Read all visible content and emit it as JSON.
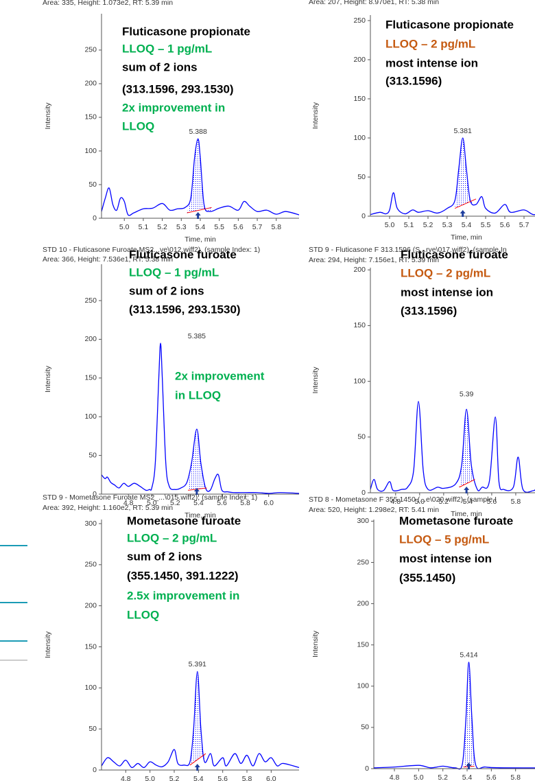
{
  "chart_data": [
    {
      "type": "line",
      "header": [
        "Area: 335, Height: 1.073e2, RT: 5.39 min"
      ],
      "annotations": [
        {
          "text": "Fluticasone propionate",
          "color": "#000000"
        },
        {
          "text": "LLOQ – 1 pg/mL",
          "color": "#00b050"
        },
        {
          "text": "sum of 2 ions",
          "color": "#000000"
        },
        {
          "text": "(313.1596, 293.1530)",
          "color": "#000000"
        },
        {
          "text": "2x improvement in",
          "color": "#00b050"
        },
        {
          "text": "LLOQ",
          "color": "#00b050"
        }
      ],
      "ylabel": "Intensity",
      "xlabel": "Time, min",
      "xlim": [
        4.88,
        5.92
      ],
      "ylim": [
        0,
        304
      ],
      "xticks": [
        {
          "value": 5,
          "label": "5.0"
        },
        5.1,
        5.2,
        5.3,
        5.4,
        5.5,
        5.6,
        5.7,
        5.8
      ],
      "yticks": [
        0,
        50,
        100,
        150,
        200,
        250
      ],
      "x": [
        4.88,
        4.9,
        4.92,
        4.94,
        4.96,
        4.98,
        5.0,
        5.02,
        5.05,
        5.1,
        5.15,
        5.2,
        5.24,
        5.28,
        5.32,
        5.35,
        5.37,
        5.388,
        5.4,
        5.42,
        5.45,
        5.5,
        5.55,
        5.6,
        5.63,
        5.66,
        5.7,
        5.75,
        5.8,
        5.85,
        5.92
      ],
      "values": [
        10,
        30,
        45,
        20,
        12,
        30,
        25,
        5,
        8,
        14,
        15,
        22,
        12,
        14,
        16,
        30,
        90,
        118,
        90,
        20,
        10,
        15,
        18,
        12,
        25,
        18,
        10,
        12,
        6,
        10,
        5
      ],
      "color": "#0000ff",
      "baseline": {
        "x": [
          5.33,
          5.46
        ],
        "y": [
          8,
          16
        ],
        "color": "#ff0000"
      },
      "peak_rt": 5.388
    },
    {
      "type": "line",
      "header": [
        "Area: 207, Height: 8.970e1, RT: 5.38 min"
      ],
      "annotations": [
        {
          "text": "Fluticasone propionate",
          "color": "#000000"
        },
        {
          "text": "LLOQ – 2 pg/mL",
          "color": "#c55a11"
        },
        {
          "text": "most intense ion",
          "color": "#000000"
        },
        {
          "text": "(313.1596)",
          "color": "#000000"
        }
      ],
      "ylabel": "Intensity",
      "xlabel": "Time, min",
      "xlim": [
        4.9,
        5.9
      ],
      "ylim": [
        0,
        257
      ],
      "xticks": [
        {
          "value": 5,
          "label": "5.0"
        },
        5.1,
        5.2,
        5.3,
        5.4,
        5.5,
        5.6,
        5.7
      ],
      "yticks": [
        0,
        50,
        100,
        150,
        200,
        250
      ],
      "x": [
        4.9,
        4.95,
        4.98,
        5.0,
        5.02,
        5.04,
        5.08,
        5.12,
        5.15,
        5.2,
        5.25,
        5.3,
        5.34,
        5.36,
        5.381,
        5.4,
        5.42,
        5.45,
        5.48,
        5.5,
        5.55,
        5.6,
        5.63,
        5.7,
        5.75,
        5.8,
        5.85,
        5.9
      ],
      "values": [
        2,
        5,
        3,
        8,
        30,
        10,
        3,
        8,
        5,
        7,
        4,
        10,
        20,
        60,
        100,
        60,
        20,
        15,
        25,
        10,
        4,
        15,
        5,
        8,
        2,
        6,
        2,
        3
      ],
      "color": "#0000ff",
      "baseline": {
        "x": [
          5.34,
          5.45
        ],
        "y": [
          10,
          22
        ],
        "color": "#ff0000"
      },
      "peak_rt": 5.381
    },
    {
      "type": "line",
      "header": [
        "STD 10 - Fluticasone Furoate MS2...ve\\012.wiff2), (sample Index: 1)",
        "Area: 366, Height: 7.536e1, RT: 5.38 min"
      ],
      "annotations": [
        {
          "text": "Fluticasone furoate",
          "color": "#000000"
        },
        {
          "text": "LLOQ – 1 pg/mL",
          "color": "#00b050"
        },
        {
          "text": "sum of 2 ions",
          "color": "#000000"
        },
        {
          "text": "(313.1596, 293.1530)",
          "color": "#000000"
        },
        {
          "text": "2x improvement",
          "color": "#00b050"
        },
        {
          "text": "in LLOQ",
          "color": "#00b050"
        }
      ],
      "ylabel": "Intensity",
      "xlabel": "Time, min",
      "xlim": [
        4.57,
        6.26
      ],
      "ylim": [
        0,
        297
      ],
      "xticks": [
        4.8,
        {
          "value": 5,
          "label": "5.0"
        },
        5.2,
        5.4,
        5.6,
        5.8,
        {
          "value": 6,
          "label": "6.0"
        }
      ],
      "yticks": [
        0,
        50,
        100,
        150,
        200,
        250
      ],
      "x": [
        4.57,
        4.6,
        4.62,
        4.65,
        4.68,
        4.72,
        4.76,
        4.8,
        4.85,
        4.9,
        4.95,
        4.98,
        5.0,
        5.03,
        5.06,
        5.075,
        5.09,
        5.12,
        5.15,
        5.2,
        5.25,
        5.3,
        5.34,
        5.385,
        5.42,
        5.46,
        5.5,
        5.54,
        5.57,
        5.6,
        5.65,
        5.7,
        5.8,
        5.9,
        6.0,
        6.1,
        6.26
      ],
      "values": [
        25,
        20,
        22,
        15,
        12,
        8,
        14,
        10,
        14,
        10,
        5,
        6,
        8,
        40,
        150,
        195,
        150,
        40,
        10,
        6,
        8,
        15,
        40,
        84,
        40,
        8,
        5,
        20,
        25,
        5,
        3,
        2,
        2,
        2,
        1,
        2,
        1
      ],
      "color": "#0000ff",
      "baseline": {
        "x": [
          5.31,
          5.47
        ],
        "y": [
          5,
          8
        ],
        "color": "#ff0000"
      },
      "peak_rt": 5.385
    },
    {
      "type": "line",
      "header": [
        "STD 9 - Fluticasone F 313.1596 (S...rve\\017.wiff2), (sample In",
        "Area: 294, Height: 7.156e1, RT: 5.39 min"
      ],
      "annotations": [
        {
          "text": "Fluticasone furoate",
          "color": "#000000"
        },
        {
          "text": "LLOQ – 2 pg/mL",
          "color": "#c55a11"
        },
        {
          "text": "most intense ion",
          "color": "#000000"
        },
        {
          "text": "(313.1596)",
          "color": "#000000"
        }
      ],
      "ylabel": "Intensity",
      "xlabel": "Time, min",
      "xlim": [
        4.59,
        6.28
      ],
      "ylim": [
        0,
        202
      ],
      "xticks": [
        4.8,
        {
          "value": 5,
          "label": "5.0"
        },
        5.2,
        5.4,
        5.6,
        5.8
      ],
      "yticks": [
        0,
        50,
        100,
        150,
        200
      ],
      "x": [
        4.59,
        4.62,
        4.65,
        4.7,
        4.75,
        4.78,
        4.85,
        4.9,
        4.95,
        4.99,
        5.03,
        5.07,
        5.15,
        5.2,
        5.3,
        5.35,
        5.39,
        5.43,
        5.48,
        5.52,
        5.58,
        5.63,
        5.66,
        5.7,
        5.78,
        5.82,
        5.86,
        5.95,
        6.0,
        6.28
      ],
      "values": [
        3,
        12,
        3,
        2,
        10,
        2,
        3,
        5,
        20,
        82,
        20,
        3,
        5,
        4,
        8,
        25,
        75,
        25,
        3,
        5,
        10,
        68,
        10,
        3,
        5,
        32,
        3,
        2,
        4,
        2
      ],
      "color": "#0000ff",
      "baseline": {
        "x": [
          5.33,
          5.46
        ],
        "y": [
          5,
          12
        ],
        "color": "#ff0000"
      },
      "peak_rt": 5.39
    },
    {
      "type": "line",
      "header": [
        "STD 9 - Mometasone Furoate MS2_...\\015.wiff2), (sample Index: 1)",
        "Area: 392, Height: 1.160e2, RT: 5.39 min"
      ],
      "annotations": [
        {
          "text": "Mometasone furoate",
          "color": "#000000"
        },
        {
          "text": "LLOQ – 2 pg/mL",
          "color": "#00b050"
        },
        {
          "text": "sum of 2 ions",
          "color": "#000000"
        },
        {
          "text": "(355.1450, 391.1222)",
          "color": "#000000"
        },
        {
          "text": "2.5x improvement in",
          "color": "#00b050"
        },
        {
          "text": "LLOQ",
          "color": "#00b050"
        }
      ],
      "ylabel": "Intensity",
      "xlim": [
        4.6,
        6.23
      ],
      "ylim": [
        0,
        305
      ],
      "xticks": [
        4.8,
        {
          "value": 5,
          "label": "5.0"
        },
        5.2,
        5.4,
        5.6,
        5.8,
        {
          "value": 6,
          "label": "6.0"
        }
      ],
      "yticks": [
        0,
        50,
        100,
        150,
        200,
        250,
        300
      ],
      "x": [
        4.6,
        4.65,
        4.7,
        4.75,
        4.8,
        4.85,
        4.9,
        4.95,
        5.0,
        5.05,
        5.1,
        5.15,
        5.2,
        5.23,
        5.28,
        5.33,
        5.36,
        5.391,
        5.42,
        5.45,
        5.5,
        5.53,
        5.6,
        5.63,
        5.7,
        5.75,
        5.8,
        5.85,
        5.9,
        5.95,
        6.0,
        6.05,
        6.1,
        6.23
      ],
      "values": [
        5,
        15,
        10,
        5,
        12,
        3,
        8,
        3,
        10,
        6,
        4,
        10,
        25,
        8,
        6,
        10,
        50,
        120,
        50,
        10,
        20,
        5,
        15,
        5,
        20,
        8,
        18,
        5,
        20,
        10,
        15,
        5,
        8,
        3
      ],
      "color": "#0000ff",
      "baseline": {
        "x": [
          5.33,
          5.46
        ],
        "y": [
          6,
          20
        ],
        "color": "#ff0000"
      },
      "peak_rt": 5.391
    },
    {
      "type": "line",
      "header": [
        "STD 8 - Mometasone F 355.1450 (...e\\020.wiff2), (sample I",
        "Area: 520, Height: 1.298e2, RT: 5.41 min"
      ],
      "annotations": [
        {
          "text": "Mometasone furoate",
          "color": "#000000"
        },
        {
          "text": "LLOQ – 5 pg/mL",
          "color": "#c55a11"
        },
        {
          "text": "most intense ion",
          "color": "#000000"
        },
        {
          "text": "(355.1450)",
          "color": "#000000"
        }
      ],
      "ylabel": "Intensity",
      "xlim": [
        4.63,
        6.3
      ],
      "ylim": [
        0,
        302
      ],
      "xticks": [
        4.8,
        {
          "value": 5,
          "label": "5.0"
        },
        5.2,
        5.4,
        5.6,
        5.8
      ],
      "yticks": [
        0,
        50,
        100,
        150,
        200,
        250,
        300
      ],
      "x": [
        4.63,
        4.8,
        5.0,
        5.1,
        5.2,
        5.3,
        5.36,
        5.39,
        5.414,
        5.44,
        5.47,
        5.55,
        5.7,
        6.3
      ],
      "values": [
        1,
        2,
        4,
        1,
        3,
        1,
        5,
        60,
        129,
        60,
        5,
        2,
        1,
        1
      ],
      "color": "#0000ff",
      "baseline": {
        "x": [
          5.37,
          5.46
        ],
        "y": [
          2,
          3
        ],
        "color": "#ff0000"
      },
      "peak_rt": 5.414
    }
  ]
}
